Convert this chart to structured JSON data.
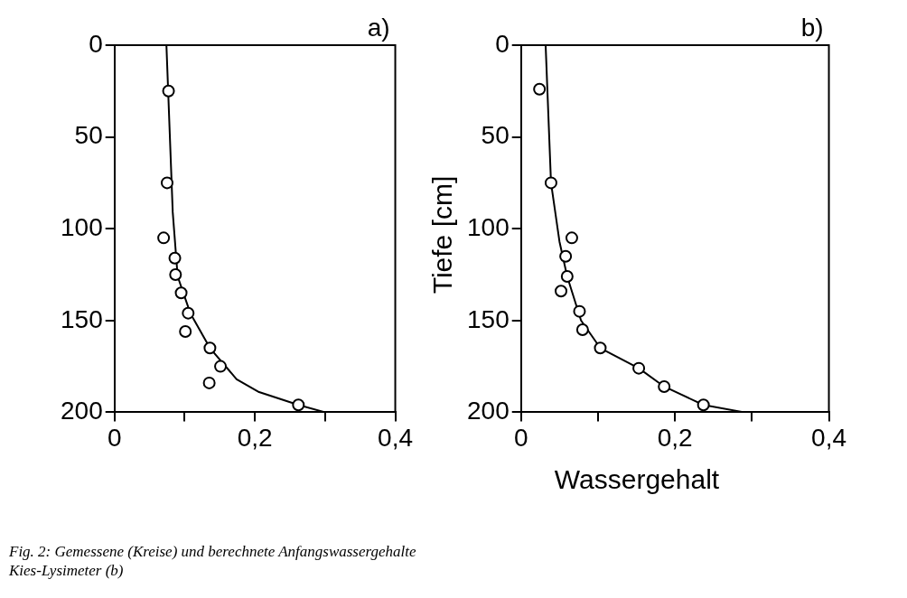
{
  "chart_data": [
    {
      "type": "scatter",
      "annotations": [
        "a)",
        "Fig. 2: Gemessene (Kreise) und berechnete Anfangswassergehalte",
        "Kies-Lysimeter (b)"
      ],
      "xlim": [
        0,
        0.4
      ],
      "xticks": [
        0,
        {
          "value": 0.1,
          "label": null
        },
        {
          "value": 0.2,
          "label": "0,2"
        },
        {
          "value": 0.3,
          "label": null
        },
        {
          "value": 0.4,
          "label": "0,4"
        }
      ],
      "ylim": [
        200,
        0
      ],
      "yticks": [
        0,
        50,
        100,
        150,
        200
      ],
      "grid": false,
      "series": [
        {
          "type": "scatter",
          "marker": "circle",
          "color": "#000000",
          "x": [
            0.077,
            0.075,
            0.07,
            0.086,
            0.087,
            0.095,
            0.105,
            0.101,
            0.136,
            0.151,
            0.135,
            0.262
          ],
          "values": [
            25,
            75,
            105,
            116,
            125,
            135,
            146,
            156,
            165,
            175,
            184,
            196
          ]
        },
        {
          "type": "line",
          "marker": "none",
          "line_style": "solid",
          "color": "#000000",
          "x": [
            0.074,
            0.083,
            0.09,
            0.108,
            0.136,
            0.174,
            0.206,
            0.262,
            0.3
          ],
          "values": [
            0,
            91,
            126,
            146,
            165,
            182,
            189,
            196,
            200
          ]
        }
      ]
    },
    {
      "type": "scatter",
      "annotations": [
        "b)"
      ],
      "xlabel": "Wassergehalt",
      "ylabel": "Tiefe [cm]",
      "xlim": [
        0,
        0.4
      ],
      "xticks": [
        0,
        {
          "value": 0.1,
          "label": null
        },
        {
          "value": 0.2,
          "label": "0,2"
        },
        {
          "value": 0.3,
          "label": null
        },
        {
          "value": 0.4,
          "label": "0,4"
        }
      ],
      "ylim": [
        200,
        0
      ],
      "yticks": [
        0,
        50,
        100,
        150,
        200
      ],
      "grid": false,
      "series": [
        {
          "type": "scatter",
          "marker": "circle",
          "color": "#000000",
          "x": [
            0.024,
            0.039,
            0.066,
            0.058,
            0.06,
            0.052,
            0.076,
            0.08,
            0.103,
            0.153,
            0.186,
            0.237
          ],
          "values": [
            24,
            75,
            105,
            115,
            126,
            134,
            145,
            155,
            165,
            176,
            186,
            196
          ]
        },
        {
          "type": "line",
          "marker": "none",
          "line_style": "solid",
          "color": "#000000",
          "x": [
            0.032,
            0.039,
            0.05,
            0.06,
            0.078,
            0.103,
            0.153,
            0.186,
            0.237,
            0.29
          ],
          "values": [
            0,
            75,
            107,
            126,
            150,
            165,
            176,
            186,
            196,
            200
          ]
        }
      ]
    }
  ]
}
